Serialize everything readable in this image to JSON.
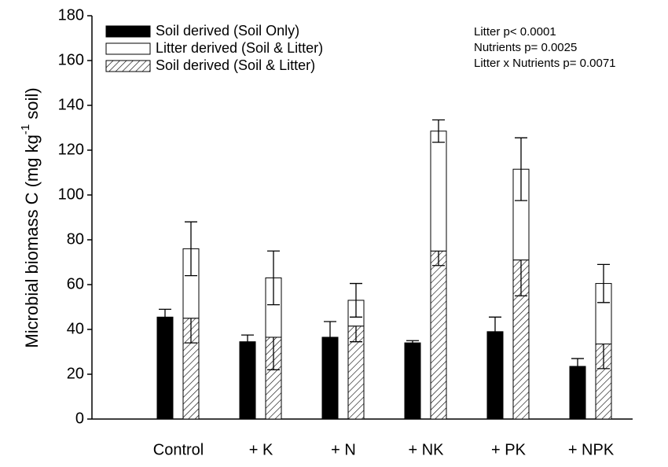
{
  "chart_data": {
    "type": "bar",
    "ylabel": {
      "main": "Microbial biomass C (mg kg",
      "sup": "-1",
      "end": " soil)"
    },
    "categories": [
      "Control",
      "+ K",
      "+ N",
      "+ NK",
      "+ PK",
      "+ NPK"
    ],
    "series": [
      {
        "name": "Soil derived (Soil Only)",
        "color": "#000000",
        "group": "single",
        "values": [
          45.5,
          34.5,
          36.5,
          34,
          39,
          23.5
        ],
        "errors": [
          3.5,
          3,
          7,
          1,
          6.5,
          3.5
        ]
      },
      {
        "name": "Litter derived (Soil & Litter)",
        "color": "#ffffff",
        "group": "stack",
        "values": [
          31,
          26.5,
          11.5,
          53.5,
          40.5,
          27
        ],
        "errors": [
          12,
          12,
          7.5,
          5,
          14,
          8.5
        ]
      },
      {
        "name": "Soil derived (Soil & Litter)",
        "color": "hatch",
        "group": "stack",
        "values": [
          45,
          36.5,
          41.5,
          75,
          71,
          33.5
        ],
        "errors": [
          11,
          14.5,
          7,
          6.5,
          16,
          11
        ]
      }
    ],
    "stack_order": [
      2,
      1
    ],
    "annotations": [
      "Litter p< 0.0001",
      "Nutrients p= 0.0025",
      "Litter x Nutrients p= 0.0071"
    ],
    "ylim": [
      0,
      180
    ],
    "yticks": [
      0,
      20,
      40,
      60,
      80,
      100,
      120,
      140,
      160,
      180
    ],
    "legend": "upper left"
  }
}
